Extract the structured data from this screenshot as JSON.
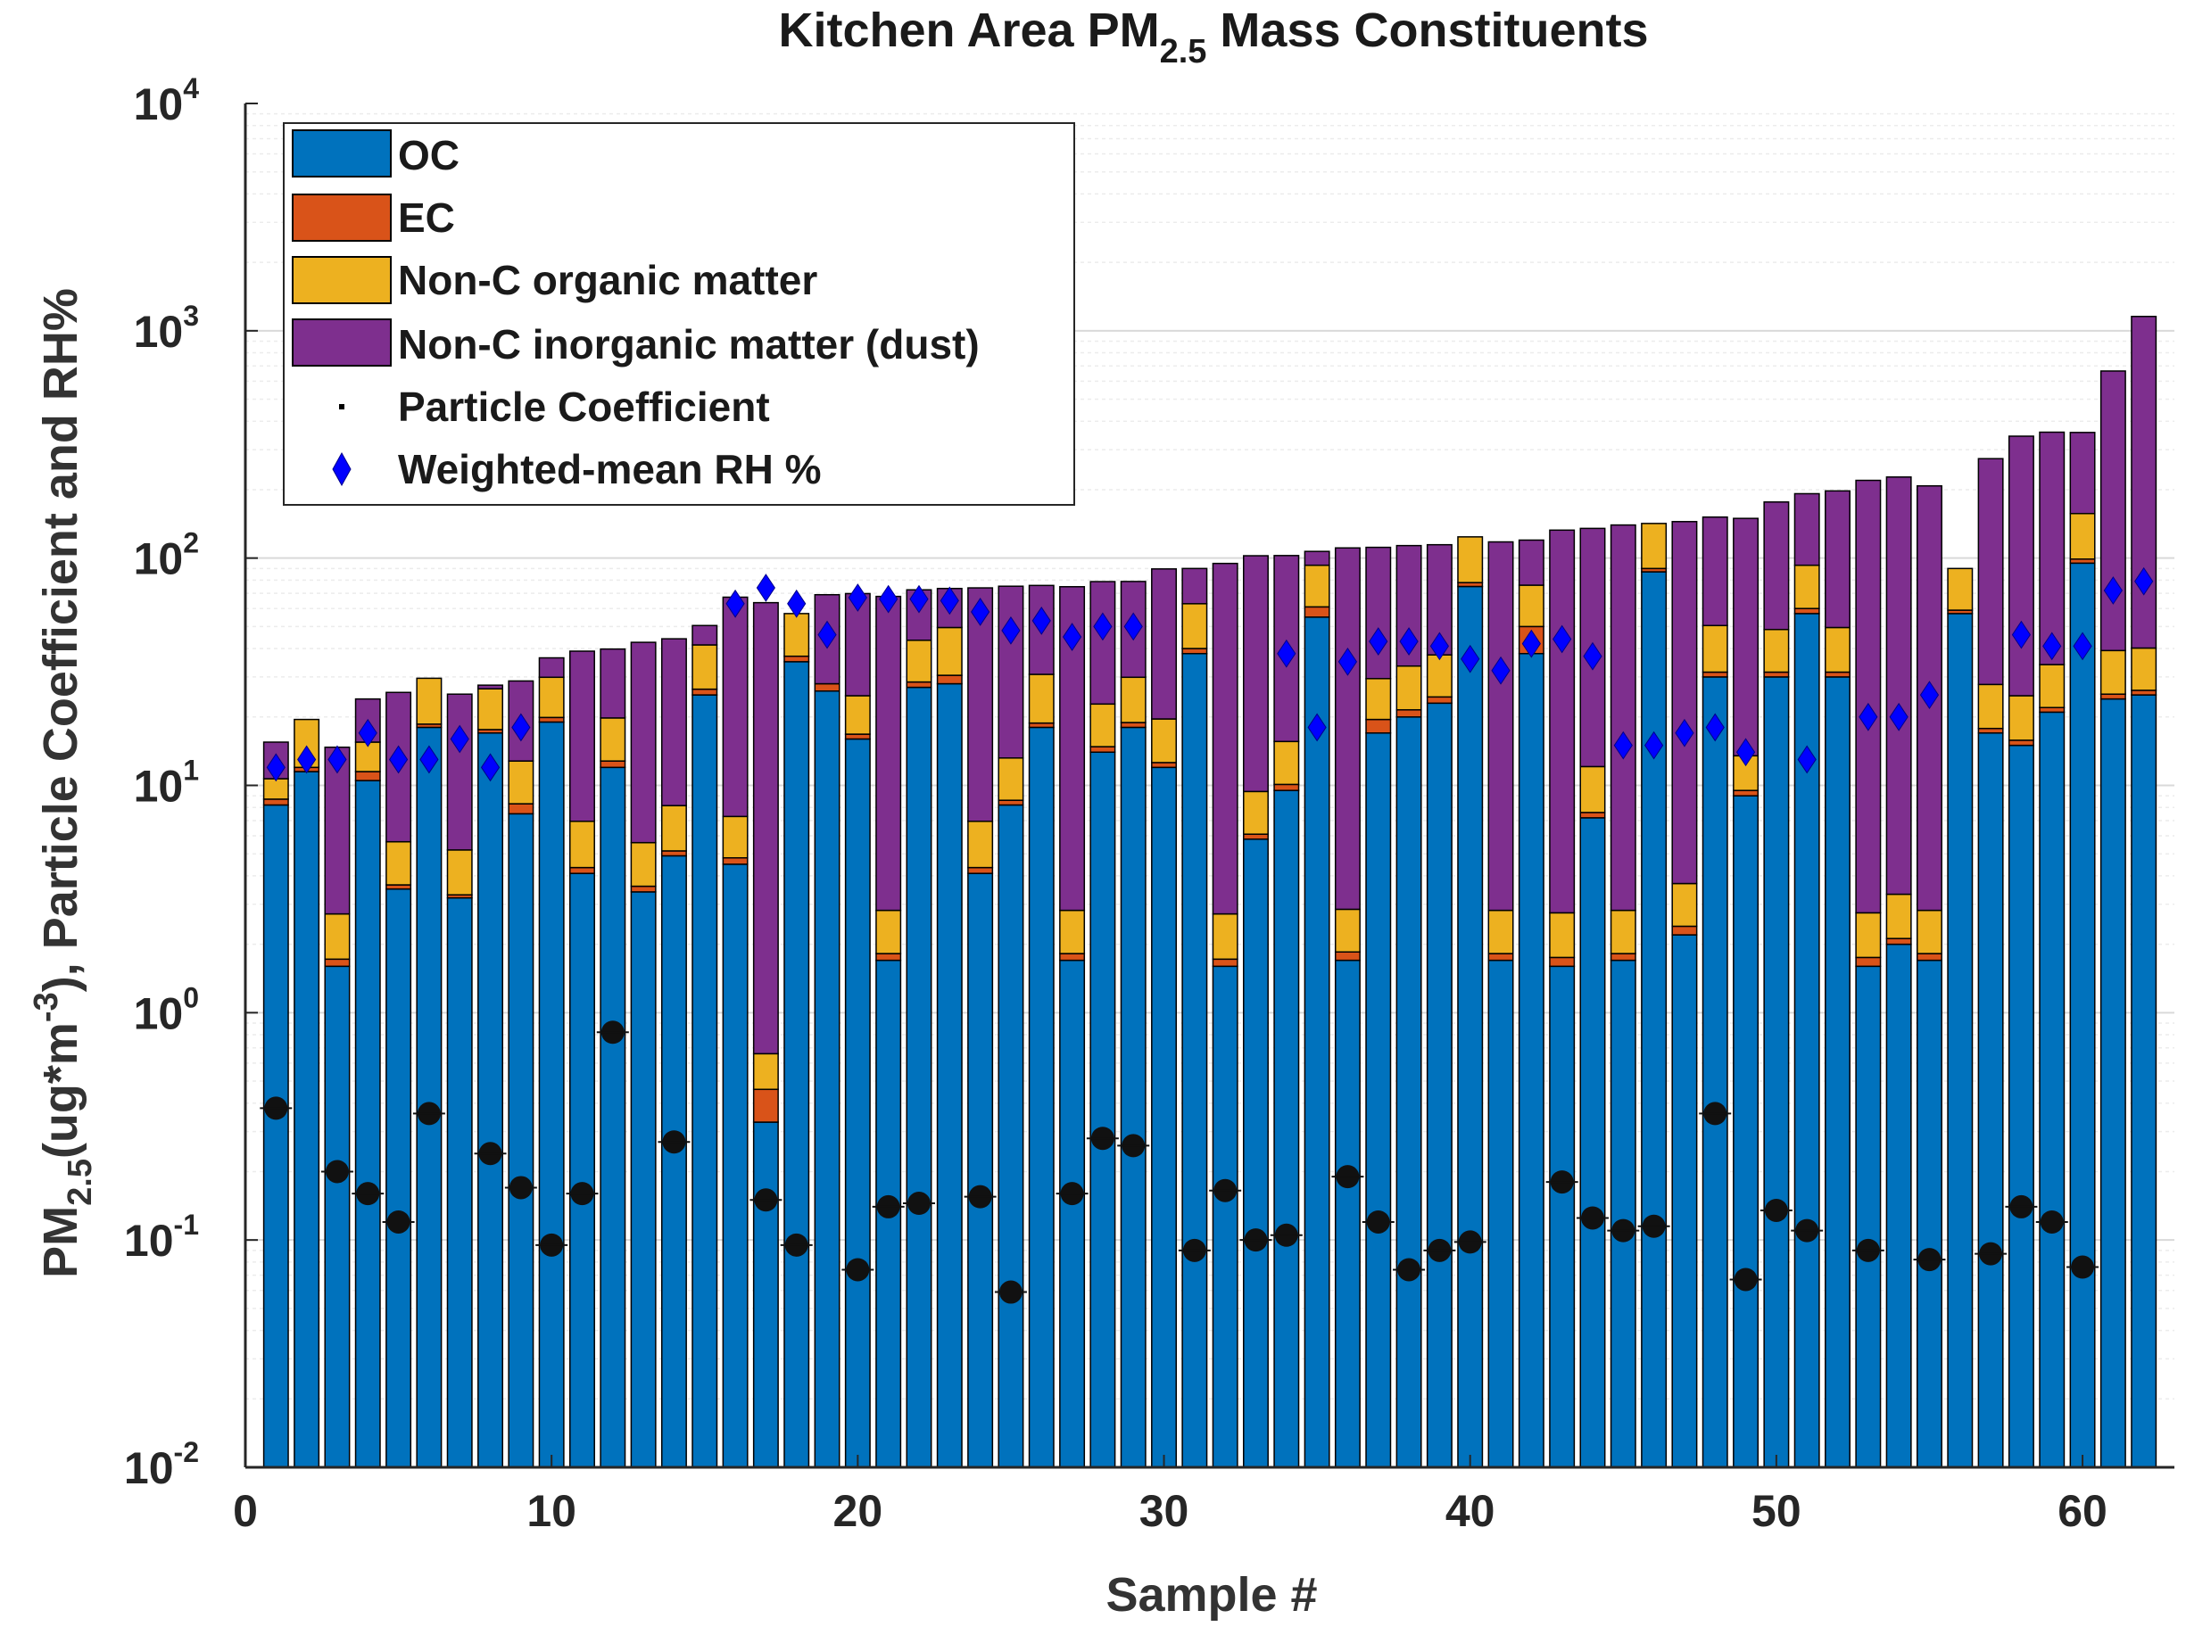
{
  "chart_data": {
    "type": "bar",
    "stacked": true,
    "y_scale": "log",
    "title": {
      "text": "Kitchen Area PM",
      "sub": "2.5",
      "rest": " Mass Constituents"
    },
    "xlabel": "Sample #",
    "ylabel": {
      "p1": "PM",
      "sub1": "2.5",
      "p2": "(ug*m",
      "sup1": "-3",
      "p3": "), Particle Coefficient and RH%"
    },
    "xlim": [
      0,
      63
    ],
    "ylim": [
      0.01,
      10000
    ],
    "x_ticks": [
      0,
      10,
      20,
      30,
      40,
      50,
      60
    ],
    "y_ticks": [
      {
        "base": "10",
        "exp": "-2"
      },
      {
        "base": "10",
        "exp": "-1"
      },
      {
        "base": "10",
        "exp": "0"
      },
      {
        "base": "10",
        "exp": "1"
      },
      {
        "base": "10",
        "exp": "2"
      },
      {
        "base": "10",
        "exp": "3"
      },
      {
        "base": "10",
        "exp": "4"
      }
    ],
    "grid": true,
    "legend_position": "top-left",
    "legend": [
      "OC",
      "EC",
      "Non-C organic matter",
      "Non-C inorganic matter (dust)",
      "Particle Coefficient",
      "Weighted-mean RH %"
    ],
    "colors": {
      "OC": "#0072BD",
      "EC": "#D95319",
      "NonC_organic": "#EDB120",
      "NonC_inorganic": "#7E2F8E",
      "particle": "#000000",
      "rh": "#0000FF"
    },
    "samples": [
      1,
      2,
      3,
      4,
      5,
      6,
      7,
      8,
      9,
      10,
      11,
      12,
      13,
      14,
      15,
      16,
      17,
      18,
      19,
      20,
      21,
      22,
      23,
      24,
      25,
      26,
      27,
      28,
      29,
      30,
      31,
      32,
      33,
      34,
      35,
      36,
      37,
      38,
      39,
      40,
      41,
      42,
      43,
      44,
      45,
      46,
      47,
      48,
      49,
      50,
      51,
      52,
      53,
      54,
      55,
      56,
      57,
      58,
      59,
      60,
      61,
      62
    ],
    "series": [
      {
        "name": "OC",
        "values": [
          8.2,
          11.5,
          1.6,
          10.5,
          3.5,
          18,
          3.2,
          17,
          7.5,
          19,
          4.1,
          12,
          3.4,
          4.9,
          25,
          4.5,
          0.33,
          35,
          26,
          16,
          1.7,
          27,
          28,
          4.1,
          8.2,
          18,
          1.7,
          14,
          18,
          12,
          38,
          1.6,
          5.8,
          9.5,
          55,
          1.7,
          17,
          20,
          23,
          75,
          1.7,
          38,
          1.6,
          7.2,
          1.7,
          87,
          2.2,
          30,
          9,
          30,
          57,
          30,
          1.6,
          2,
          1.7,
          57,
          17,
          15,
          21,
          95,
          24,
          25
        ]
      },
      {
        "name": "EC",
        "values": [
          0.5,
          0.5,
          0.12,
          1,
          0.15,
          0.6,
          0.1,
          0.6,
          0.8,
          0.9,
          0.25,
          0.8,
          0.2,
          0.25,
          1.5,
          0.3,
          0.13,
          2,
          2,
          0.8,
          0.12,
          1.5,
          2.5,
          0.25,
          0.4,
          0.8,
          0.12,
          0.8,
          0.9,
          0.6,
          2,
          0.12,
          0.3,
          0.6,
          6,
          0.15,
          2.5,
          1.5,
          1.5,
          3,
          0.12,
          12,
          0.15,
          0.4,
          0.12,
          3,
          0.2,
          1.5,
          0.5,
          1.5,
          3,
          1.5,
          0.15,
          0.12,
          0.12,
          2,
          0.8,
          0.8,
          1,
          4,
          1.2,
          1.2
        ]
      },
      {
        "name": "Non-C organic matter",
        "values": [
          2,
          7.5,
          1,
          4,
          2,
          11,
          1.9,
          9,
          4.5,
          10,
          2.6,
          7,
          2,
          3,
          15,
          2.5,
          0.2,
          20,
          0,
          8,
          1,
          15,
          19,
          2.6,
          4.6,
          12,
          1,
          8,
          11,
          7,
          23,
          1,
          3.3,
          5.5,
          32,
          1,
          10,
          12,
          13,
          46,
          1,
          26,
          1,
          4.5,
          1,
          52,
          1.3,
          19,
          4,
          17,
          33,
          18,
          1,
          1.2,
          1,
          31,
          10,
          9,
          12,
          58,
          14,
          14
        ]
      },
      {
        "name": "Non-C inorganic matter (dust)",
        "values": [
          4.8,
          0,
          12,
          8.5,
          20,
          0,
          20,
          1,
          16,
          6.5,
          32,
          20,
          37,
          36,
          9,
          60,
          63,
          0,
          41,
          45,
          65,
          29,
          24,
          67,
          62,
          45,
          72,
          56,
          49,
          70,
          27,
          92,
          93,
          87,
          14,
          108,
          82,
          80,
          77,
          0,
          115,
          44,
          130,
          123,
          137,
          0,
          141,
          101,
          136,
          128,
          99,
          148,
          217,
          224,
          205,
          0,
          246,
          319,
          324,
          200,
          626,
          1116
        ]
      },
      {
        "name": "Particle Coefficient",
        "values": [
          0.38,
          null,
          0.2,
          0.16,
          0.12,
          0.36,
          null,
          0.24,
          0.17,
          0.095,
          0.16,
          0.82,
          null,
          0.27,
          null,
          null,
          0.15,
          0.095,
          null,
          0.074,
          0.14,
          0.145,
          null,
          0.155,
          0.059,
          null,
          0.16,
          0.28,
          0.26,
          null,
          0.09,
          0.165,
          0.1,
          0.105,
          null,
          0.19,
          0.12,
          0.074,
          0.09,
          0.098,
          null,
          null,
          0.18,
          0.125,
          0.11,
          0.115,
          null,
          0.36,
          0.067,
          0.135,
          0.11,
          null,
          0.09,
          null,
          0.082,
          null,
          0.087,
          0.14,
          0.12,
          0.076,
          null,
          null
        ]
      },
      {
        "name": "Weighted-mean RH %",
        "values": [
          12,
          13,
          13,
          17,
          13,
          13,
          16,
          12,
          18,
          null,
          null,
          null,
          null,
          null,
          null,
          63,
          74,
          63,
          46,
          67,
          66,
          66,
          65,
          58,
          48,
          53,
          45,
          50,
          50,
          null,
          null,
          null,
          null,
          38,
          18,
          35,
          43,
          43,
          41,
          36,
          32,
          42,
          44,
          37,
          15,
          15,
          17,
          18,
          14,
          null,
          13,
          null,
          20,
          20,
          25,
          null,
          null,
          46,
          41,
          41,
          72,
          79
        ]
      }
    ]
  }
}
